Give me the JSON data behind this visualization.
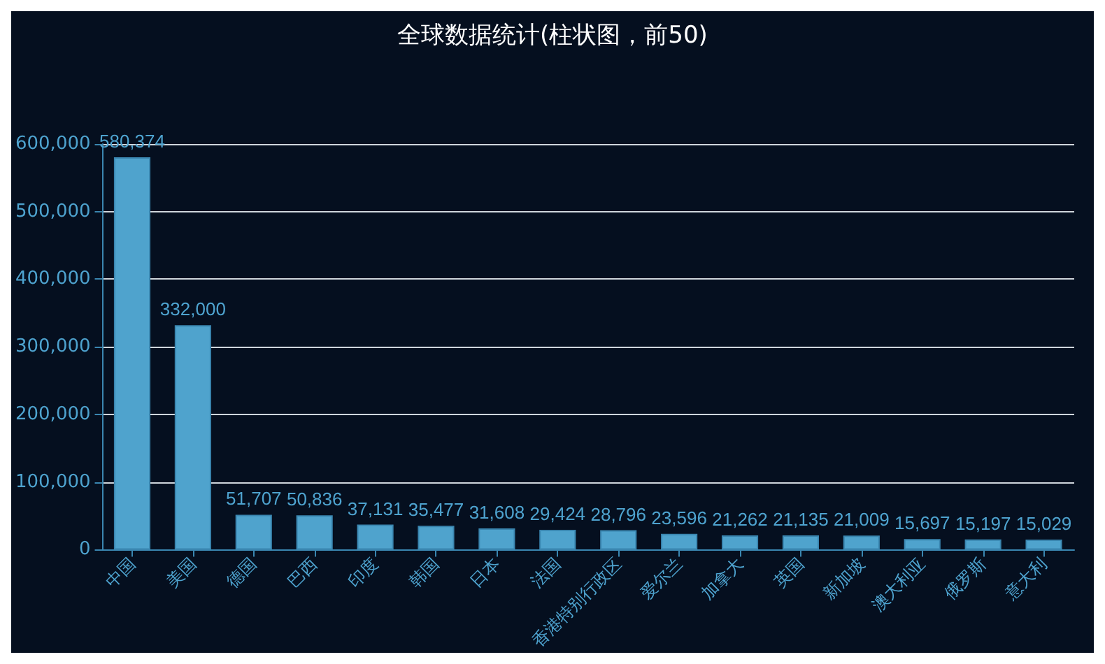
{
  "chart_data": {
    "type": "bar",
    "title": "全球数据统计(柱状图，前50)",
    "categories": [
      "中国",
      "美国",
      "德国",
      "巴西",
      "印度",
      "韩国",
      "日本",
      "法国",
      "香港特别行政区",
      "爱尔兰",
      "加拿大",
      "英国",
      "新加坡",
      "澳大利亚",
      "俄罗斯",
      "意大利"
    ],
    "values": [
      580374,
      332000,
      51707,
      50836,
      37131,
      35477,
      31608,
      29424,
      28796,
      23596,
      21262,
      21135,
      21009,
      15697,
      15197,
      15029
    ],
    "value_labels": [
      "580,374",
      "332,000",
      "51,707",
      "50,836",
      "37,131",
      "35,477",
      "31,608",
      "29,424",
      "28,796",
      "23,596",
      "21,262",
      "21,135",
      "21,009",
      "15,697",
      "15,197",
      "15,029"
    ],
    "color": "#4fa3cd",
    "ylim": [
      0,
      600000
    ],
    "yticks": [
      {
        "value": 0,
        "label": "0"
      },
      {
        "value": 100000,
        "label": "100,000"
      },
      {
        "value": 200000,
        "label": "200,000"
      },
      {
        "value": 300000,
        "label": "300,000"
      },
      {
        "value": 400000,
        "label": "400,000"
      },
      {
        "value": 500000,
        "label": "500,000"
      },
      {
        "value": 600000,
        "label": "600,000"
      }
    ],
    "grid": "y"
  }
}
